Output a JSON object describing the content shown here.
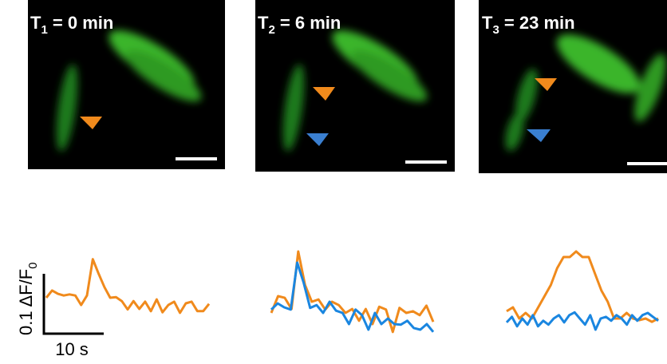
{
  "panels": [
    {
      "label": {
        "letter": "T",
        "sub": "1",
        "rest": " = 0 min"
      },
      "trace": [
        {
          "color": "#f08a1c",
          "values": [
            0.01,
            0.023,
            0.017,
            0.014,
            0.016,
            0.014,
            -0.003,
            0.014,
            0.079,
            0.053,
            0.029,
            0.01,
            0.011,
            0.004,
            -0.011,
            0.004,
            -0.01,
            0.003,
            -0.014,
            0.007,
            -0.016,
            -0.003,
            0.003,
            -0.017,
            0,
            0.003,
            -0.014,
            -0.014,
            -0.001
          ]
        }
      ]
    },
    {
      "label": {
        "letter": "T",
        "sub": "2",
        "rest": " = 6 min"
      },
      "trace": [
        {
          "color": "#f08a1c",
          "values": [
            -0.01,
            0.02,
            0.017,
            -0.003,
            0.1,
            0.04,
            0.01,
            0.014,
            -0.004,
            0.01,
            0.004,
            -0.01,
            -0.003,
            -0.024,
            -0.003,
            -0.03,
            0.001,
            -0.004,
            -0.044,
            -0.001,
            -0.01,
            -0.007,
            -0.014,
            0.003,
            -0.026
          ]
        },
        {
          "color": "#1a86e0",
          "values": [
            -0.004,
            0.007,
            0,
            -0.004,
            0.08,
            0.044,
            -0.001,
            0.004,
            -0.01,
            0.01,
            -0.006,
            -0.01,
            -0.03,
            -0.004,
            -0.014,
            -0.04,
            -0.01,
            -0.03,
            -0.02,
            -0.03,
            -0.031,
            -0.024,
            -0.037,
            -0.04,
            -0.03,
            -0.044
          ]
        }
      ]
    },
    {
      "label": {
        "letter": "T",
        "sub": "3",
        "rest": " = 23 min"
      },
      "trace": [
        {
          "color": "#f08a1c",
          "values": [
            0.003,
            0.01,
            -0.01,
            0,
            -0.01,
            0.01,
            0.03,
            0.05,
            0.08,
            0.1,
            0.1,
            0.11,
            0.1,
            0.1,
            0.07,
            0.04,
            0.02,
            -0.01,
            -0.01,
            0,
            -0.01,
            -0.013,
            -0.01,
            -0.016,
            -0.01
          ]
        },
        {
          "color": "#1a86e0",
          "values": [
            -0.017,
            -0.007,
            -0.024,
            -0.01,
            -0.021,
            -0.004,
            -0.024,
            -0.014,
            -0.021,
            -0.01,
            -0.004,
            -0.017,
            -0.004,
            0.001,
            -0.01,
            -0.021,
            -0.004,
            -0.03,
            -0.01,
            -0.007,
            -0.014,
            -0.004,
            -0.01,
            -0.021,
            -0.004,
            -0.014,
            -0.004,
            0,
            -0.007,
            -0.014
          ]
        }
      ]
    }
  ],
  "scale_bar": {
    "y_label": "0.1 ΔF/F",
    "y_sub": "0",
    "x_label": "10 s"
  }
}
